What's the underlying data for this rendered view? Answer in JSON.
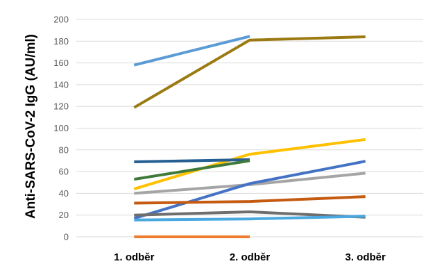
{
  "chart_data": {
    "type": "line",
    "title": "",
    "xlabel": "",
    "ylabel": "Anti-SARS-CoV-2 IgG (AU/ml)",
    "categories": [
      "1. odběr",
      "2. odběr",
      "3. odběr"
    ],
    "ylim": [
      0,
      200
    ],
    "yticks": [
      0,
      20,
      40,
      60,
      80,
      100,
      120,
      140,
      160,
      180,
      200
    ],
    "grid": true,
    "legend": "none",
    "series": [
      {
        "color": "#5b9bd5",
        "values": [
          158,
          184.5,
          null
        ]
      },
      {
        "color": "#9c7a12",
        "values": [
          119,
          181,
          184
        ]
      },
      {
        "color": "#ffc000",
        "values": [
          44,
          76,
          89.5
        ]
      },
      {
        "color": "#255e91",
        "values": [
          69,
          71,
          null
        ]
      },
      {
        "color": "#3f7a3a",
        "values": [
          53,
          70,
          null
        ]
      },
      {
        "color": "#a5a5a5",
        "values": [
          40,
          48,
          58.5
        ]
      },
      {
        "color": "#4472c4",
        "values": [
          17,
          49,
          69.5
        ]
      },
      {
        "color": "#c55a11",
        "values": [
          31,
          32.5,
          37
        ]
      },
      {
        "color": "#6e6e6e",
        "values": [
          20,
          23,
          18
        ]
      },
      {
        "color": "#4aa8e0",
        "values": [
          15.5,
          16.5,
          19
        ]
      },
      {
        "color": "#ed7d31",
        "values": [
          0,
          0,
          null
        ]
      }
    ]
  }
}
